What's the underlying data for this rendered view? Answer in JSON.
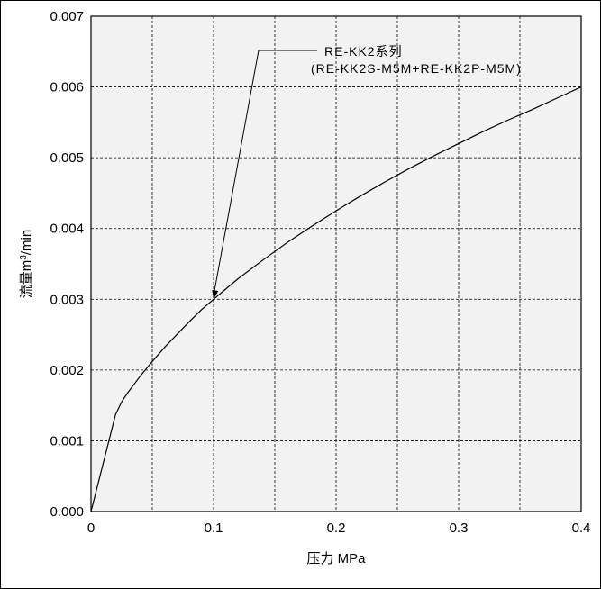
{
  "chart_data": {
    "type": "line",
    "xlabel": "压力 MPa",
    "ylabel_main": "流量m",
    "ylabel_sup": "3",
    "ylabel_end": "/min",
    "xlim": [
      0,
      0.4
    ],
    "ylim": [
      0,
      0.007
    ],
    "x_ticks": [
      0,
      0.1,
      0.2,
      0.3,
      0.4
    ],
    "x_tick_labels": [
      "0",
      "0.1",
      "0.2",
      "0.3",
      "0.4"
    ],
    "x_grid": [
      0.05,
      0.1,
      0.15,
      0.2,
      0.25,
      0.3,
      0.35
    ],
    "y_ticks": [
      0,
      0.001,
      0.002,
      0.003,
      0.004,
      0.005,
      0.006,
      0.007
    ],
    "y_tick_labels": [
      "0.000",
      "0.001",
      "0.002",
      "0.003",
      "0.004",
      "0.005",
      "0.006",
      "0.007"
    ],
    "grid": true,
    "series": [
      {
        "x": [
          0,
          0.02,
          0.025,
          0.03,
          0.04,
          0.05,
          0.06,
          0.07,
          0.08,
          0.09,
          0.1,
          0.12,
          0.14,
          0.16,
          0.18,
          0.2,
          0.22,
          0.24,
          0.26,
          0.28,
          0.3,
          0.32,
          0.34,
          0.36,
          0.38,
          0.4
        ],
        "y": [
          0,
          0.00137,
          0.00155,
          0.00168,
          0.00191,
          0.00212,
          0.00232,
          0.0025,
          0.00268,
          0.00285,
          0.003,
          0.00329,
          0.00355,
          0.0038,
          0.00403,
          0.00425,
          0.00446,
          0.00466,
          0.00485,
          0.00503,
          0.0052,
          0.00537,
          0.00553,
          0.00568,
          0.00584,
          0.006
        ]
      }
    ],
    "annotation": {
      "line1": "RE-KK2系列",
      "line2": "(RE-KK2S-M5M+RE-KK2P-M5M)",
      "points_to": [
        0.1,
        0.003
      ]
    }
  },
  "colors": {
    "plot_background": "#f2f2f2",
    "line": "#000000",
    "grid": "#000000",
    "axis": "#000000"
  }
}
